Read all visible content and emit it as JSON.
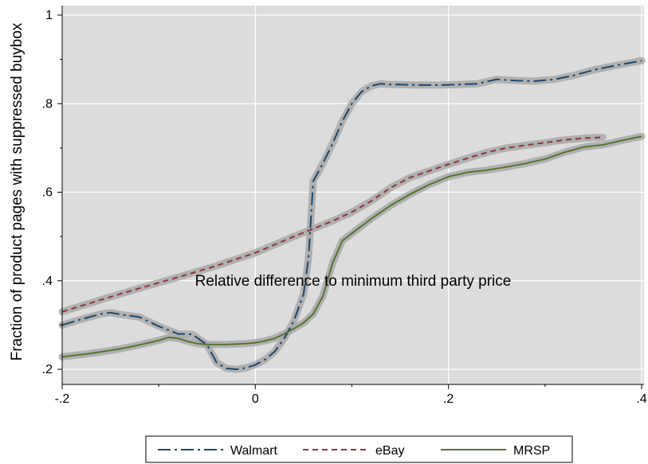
{
  "chart_data": {
    "type": "line",
    "xlabel": "Relative difference to minimum third party price",
    "ylabel": "Fraction of product pages with suppressed buybox",
    "xlim": [
      -0.2,
      0.4
    ],
    "ylim": [
      0.19,
      1.0
    ],
    "grid": true,
    "legend_position": "bottom",
    "x_ticks": [
      {
        "value": -0.2,
        "label": "-.2"
      },
      {
        "value": 0,
        "label": "0"
      },
      {
        "value": 0.2,
        "label": ".2"
      },
      {
        "value": 0.4,
        "label": ".4"
      }
    ],
    "y_ticks": [
      {
        "value": 0.2,
        "label": ".2"
      },
      {
        "value": 0.4,
        "label": ".4"
      },
      {
        "value": 0.6,
        "label": ".6"
      },
      {
        "value": 0.8,
        "label": ".8"
      },
      {
        "value": 1.0,
        "label": "1"
      }
    ],
    "colors": {
      "plot_background": "#dcdcdc",
      "grid": "#ffffff",
      "confidence_band": "#a9a9a9"
    },
    "series": [
      {
        "name": "Walmart",
        "color": "#1a476f",
        "dash": "dashdot",
        "x": [
          -0.2,
          -0.18,
          -0.16,
          -0.15,
          -0.14,
          -0.12,
          -0.1,
          -0.08,
          -0.065,
          -0.05,
          -0.04,
          -0.03,
          -0.02,
          -0.01,
          0.0,
          0.01,
          0.02,
          0.03,
          0.04,
          0.05,
          0.055,
          0.06,
          0.07,
          0.08,
          0.09,
          0.1,
          0.11,
          0.12,
          0.13,
          0.14,
          0.15,
          0.17,
          0.19,
          0.21,
          0.23,
          0.25,
          0.27,
          0.29,
          0.31,
          0.33,
          0.35,
          0.37,
          0.39,
          0.4
        ],
        "y": [
          0.3,
          0.313,
          0.325,
          0.328,
          0.324,
          0.318,
          0.297,
          0.28,
          0.279,
          0.255,
          0.215,
          0.202,
          0.2,
          0.203,
          0.21,
          0.222,
          0.24,
          0.27,
          0.31,
          0.37,
          0.45,
          0.625,
          0.665,
          0.71,
          0.76,
          0.8,
          0.827,
          0.84,
          0.845,
          0.843,
          0.843,
          0.842,
          0.842,
          0.843,
          0.845,
          0.855,
          0.852,
          0.851,
          0.855,
          0.864,
          0.876,
          0.885,
          0.893,
          0.897
        ]
      },
      {
        "name": "eBay",
        "color": "#90353b",
        "dash": "dash",
        "x": [
          -0.2,
          -0.16,
          -0.12,
          -0.08,
          -0.04,
          0.0,
          0.04,
          0.08,
          0.1,
          0.12,
          0.14,
          0.16,
          0.18,
          0.2,
          0.22,
          0.24,
          0.26,
          0.28,
          0.3,
          0.32,
          0.34,
          0.36
        ],
        "y": [
          0.33,
          0.357,
          0.383,
          0.408,
          0.434,
          0.463,
          0.5,
          0.535,
          0.555,
          0.58,
          0.61,
          0.633,
          0.648,
          0.663,
          0.677,
          0.69,
          0.7,
          0.706,
          0.712,
          0.718,
          0.722,
          0.724
        ]
      },
      {
        "name": "MRSP",
        "color": "#55752f",
        "dash": "solid",
        "x": [
          -0.2,
          -0.17,
          -0.14,
          -0.12,
          -0.1,
          -0.09,
          -0.08,
          -0.07,
          -0.06,
          -0.05,
          -0.03,
          -0.01,
          0.0,
          0.01,
          0.02,
          0.03,
          0.04,
          0.05,
          0.06,
          0.07,
          0.08,
          0.09,
          0.1,
          0.12,
          0.14,
          0.16,
          0.18,
          0.2,
          0.22,
          0.24,
          0.26,
          0.28,
          0.3,
          0.32,
          0.34,
          0.36,
          0.38,
          0.4
        ],
        "y": [
          0.228,
          0.236,
          0.246,
          0.255,
          0.265,
          0.272,
          0.27,
          0.263,
          0.258,
          0.256,
          0.256,
          0.258,
          0.26,
          0.264,
          0.27,
          0.28,
          0.292,
          0.305,
          0.325,
          0.365,
          0.44,
          0.49,
          0.507,
          0.54,
          0.57,
          0.595,
          0.617,
          0.635,
          0.645,
          0.65,
          0.657,
          0.665,
          0.675,
          0.69,
          0.702,
          0.707,
          0.717,
          0.726
        ]
      }
    ]
  }
}
